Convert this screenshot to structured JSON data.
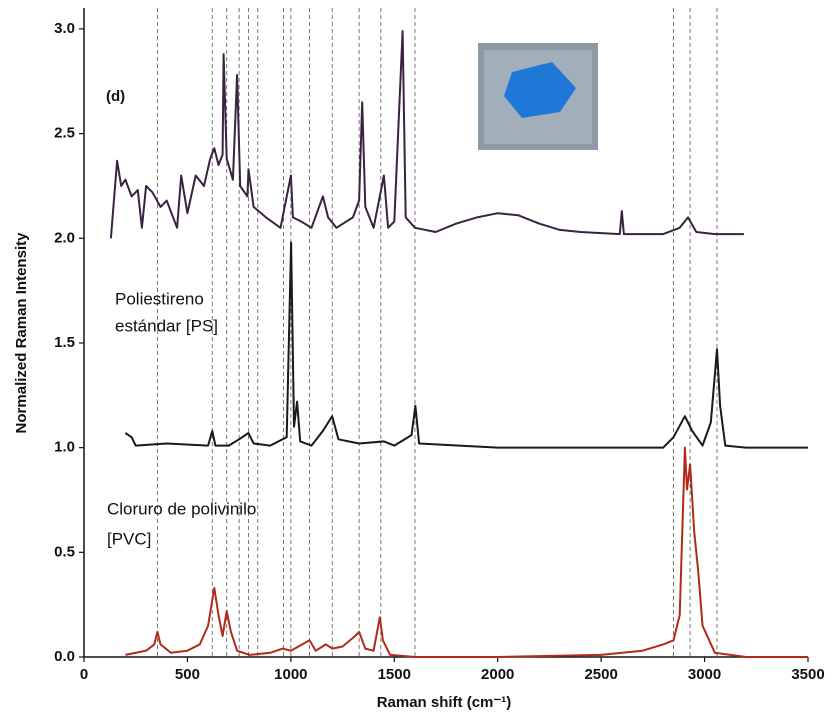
{
  "chart_data": {
    "type": "line",
    "xlabel": "Raman shift (cm⁻¹)",
    "ylabel": "Normalized Raman Intensity",
    "annotations": [
      "(d)",
      "Poliestireno",
      "estándar [PS]",
      "Cloruro de polivinilo",
      "[PVC]"
    ],
    "xlim": [
      0,
      3500
    ],
    "ylim": [
      0,
      3.1
    ],
    "xticks": [
      0,
      500,
      1000,
      1500,
      2000,
      2500,
      3000,
      3500
    ],
    "yticks": [
      {
        "value": 0,
        "label": "0.0"
      },
      0.5,
      {
        "value": 1,
        "label": "1.0"
      },
      1.5,
      {
        "value": 2,
        "label": "2.0"
      },
      2.5,
      {
        "value": 3,
        "label": "3.0"
      }
    ],
    "reference_lines": [
      355,
      620,
      690,
      750,
      795,
      840,
      965,
      1000,
      1090,
      1200,
      1330,
      1435,
      1600,
      2850,
      2930,
      3060
    ],
    "series": [
      {
        "color": "#3a2240",
        "x": [
          130,
          160,
          180,
          200,
          230,
          260,
          280,
          300,
          330,
          370,
          400,
          450,
          470,
          500,
          540,
          580,
          610,
          630,
          650,
          670,
          675,
          690,
          720,
          740,
          755,
          790,
          795,
          820,
          880,
          950,
          1000,
          1010,
          1050,
          1100,
          1155,
          1180,
          1220,
          1300,
          1330,
          1345,
          1360,
          1400,
          1450,
          1470,
          1500,
          1540,
          1555,
          1600,
          1700,
          1800,
          1900,
          2000,
          2100,
          2200,
          2300,
          2400,
          2590,
          2600,
          2610,
          2800,
          2880,
          2920,
          2960,
          3050,
          3190
        ],
        "values": [
          2.0,
          2.37,
          2.25,
          2.28,
          2.2,
          2.23,
          2.05,
          2.25,
          2.22,
          2.15,
          2.18,
          2.05,
          2.3,
          2.12,
          2.3,
          2.25,
          2.38,
          2.43,
          2.35,
          2.4,
          2.88,
          2.38,
          2.28,
          2.78,
          2.25,
          2.2,
          2.33,
          2.15,
          2.1,
          2.05,
          2.3,
          2.1,
          2.08,
          2.05,
          2.2,
          2.1,
          2.05,
          2.1,
          2.18,
          2.65,
          2.15,
          2.05,
          2.3,
          2.05,
          2.08,
          2.99,
          2.1,
          2.05,
          2.03,
          2.07,
          2.1,
          2.12,
          2.11,
          2.07,
          2.04,
          2.03,
          2.02,
          2.13,
          2.02,
          2.02,
          2.05,
          2.1,
          2.03,
          2.02,
          2.02
        ]
      },
      {
        "color": "#1a1a1a",
        "x": [
          200,
          230,
          250,
          400,
          600,
          620,
          635,
          700,
          750,
          795,
          820,
          900,
          980,
          1001,
          1015,
          1030,
          1045,
          1100,
          1155,
          1200,
          1230,
          1330,
          1450,
          1500,
          1583,
          1602,
          1620,
          2000,
          2500,
          2800,
          2850,
          2905,
          2940,
          2990,
          3030,
          3060,
          3075,
          3100,
          3200,
          3500
        ],
        "values": [
          1.07,
          1.05,
          1.01,
          1.02,
          1.01,
          1.08,
          1.01,
          1.01,
          1.04,
          1.07,
          1.02,
          1.01,
          1.05,
          1.98,
          1.1,
          1.22,
          1.03,
          1.01,
          1.08,
          1.15,
          1.04,
          1.02,
          1.03,
          1.01,
          1.06,
          1.2,
          1.02,
          1.0,
          1.0,
          1.0,
          1.05,
          1.15,
          1.08,
          1.01,
          1.12,
          1.47,
          1.2,
          1.01,
          1.0,
          1.0
        ]
      },
      {
        "color": "#b22a1a",
        "x": [
          200,
          300,
          340,
          355,
          370,
          420,
          500,
          560,
          600,
          630,
          650,
          670,
          690,
          710,
          740,
          800,
          900,
          960,
          1000,
          1090,
          1120,
          1170,
          1200,
          1250,
          1310,
          1330,
          1360,
          1400,
          1430,
          1445,
          1480,
          1600,
          2000,
          2500,
          2700,
          2800,
          2850,
          2880,
          2905,
          2915,
          2930,
          2950,
          2970,
          2990,
          3050,
          3200,
          3500
        ],
        "values": [
          0.01,
          0.03,
          0.06,
          0.12,
          0.06,
          0.02,
          0.03,
          0.06,
          0.15,
          0.33,
          0.2,
          0.1,
          0.22,
          0.12,
          0.03,
          0.01,
          0.02,
          0.04,
          0.03,
          0.08,
          0.03,
          0.06,
          0.04,
          0.05,
          0.1,
          0.12,
          0.04,
          0.03,
          0.19,
          0.08,
          0.01,
          0.0,
          0.0,
          0.01,
          0.03,
          0.06,
          0.08,
          0.2,
          1.0,
          0.8,
          0.92,
          0.6,
          0.4,
          0.15,
          0.02,
          0.0,
          0.0
        ]
      }
    ]
  }
}
